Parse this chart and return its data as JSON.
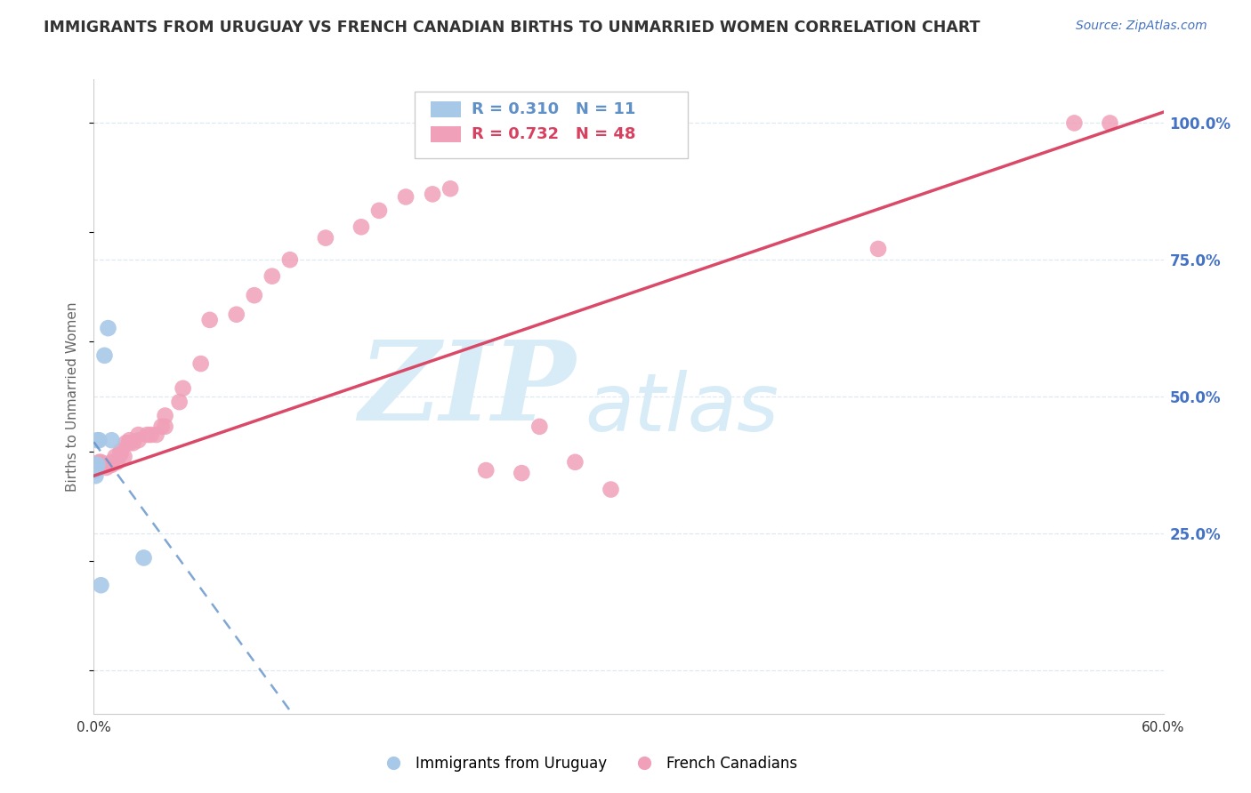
{
  "title": "IMMIGRANTS FROM URUGUAY VS FRENCH CANADIAN BIRTHS TO UNMARRIED WOMEN CORRELATION CHART",
  "source": "Source: ZipAtlas.com",
  "ylabel": "Births to Unmarried Women",
  "xlim": [
    0.0,
    0.6
  ],
  "ylim": [
    -0.08,
    1.08
  ],
  "xticks": [
    0.0,
    0.1,
    0.2,
    0.3,
    0.4,
    0.5,
    0.6
  ],
  "xticklabels": [
    "0.0%",
    "",
    "",
    "",
    "",
    "",
    "60.0%"
  ],
  "yticks_right": [
    0.0,
    0.25,
    0.5,
    0.75,
    1.0
  ],
  "yticklabels_right": [
    "",
    "25.0%",
    "50.0%",
    "75.0%",
    "100.0%"
  ],
  "R_blue": 0.31,
  "N_blue": 11,
  "R_pink": 0.732,
  "N_pink": 48,
  "legend_label_blue": "Immigrants from Uruguay",
  "legend_label_pink": "French Canadians",
  "watermark_zip": "ZIP",
  "watermark_atlas": "atlas",
  "blue_color": "#a8c8e8",
  "pink_color": "#f0a0b8",
  "trend_blue_color": "#6090c8",
  "trend_pink_color": "#d84060",
  "grid_color": "#dde8f0",
  "background_color": "#ffffff",
  "title_color": "#333333",
  "axis_label_color": "#666666",
  "right_tick_color": "#4472c4",
  "watermark_color": "#d8ecf8",
  "blue_x": [
    0.001,
    0.001,
    0.001,
    0.002,
    0.002,
    0.003,
    0.004,
    0.006,
    0.008,
    0.01,
    0.028
  ],
  "blue_y": [
    0.375,
    0.365,
    0.355,
    0.42,
    0.375,
    0.42,
    0.155,
    0.575,
    0.625,
    0.42,
    0.205
  ],
  "pink_x": [
    0.003,
    0.004,
    0.005,
    0.006,
    0.007,
    0.008,
    0.009,
    0.01,
    0.01,
    0.012,
    0.013,
    0.015,
    0.015,
    0.017,
    0.018,
    0.02,
    0.02,
    0.022,
    0.025,
    0.025,
    0.03,
    0.032,
    0.035,
    0.038,
    0.04,
    0.04,
    0.048,
    0.05,
    0.06,
    0.065,
    0.08,
    0.09,
    0.1,
    0.11,
    0.13,
    0.15,
    0.16,
    0.175,
    0.19,
    0.2,
    0.22,
    0.24,
    0.25,
    0.27,
    0.29,
    0.44,
    0.55,
    0.57
  ],
  "pink_y": [
    0.38,
    0.38,
    0.375,
    0.375,
    0.37,
    0.375,
    0.375,
    0.38,
    0.375,
    0.39,
    0.38,
    0.395,
    0.4,
    0.39,
    0.415,
    0.415,
    0.42,
    0.415,
    0.42,
    0.43,
    0.43,
    0.43,
    0.43,
    0.445,
    0.445,
    0.465,
    0.49,
    0.515,
    0.56,
    0.64,
    0.65,
    0.685,
    0.72,
    0.75,
    0.79,
    0.81,
    0.84,
    0.865,
    0.87,
    0.88,
    0.365,
    0.36,
    0.445,
    0.38,
    0.33,
    0.77,
    1.0,
    1.0
  ],
  "pink_trend_x0": 0.0,
  "pink_trend_y0": 0.355,
  "pink_trend_x1": 0.6,
  "pink_trend_y1": 1.02
}
